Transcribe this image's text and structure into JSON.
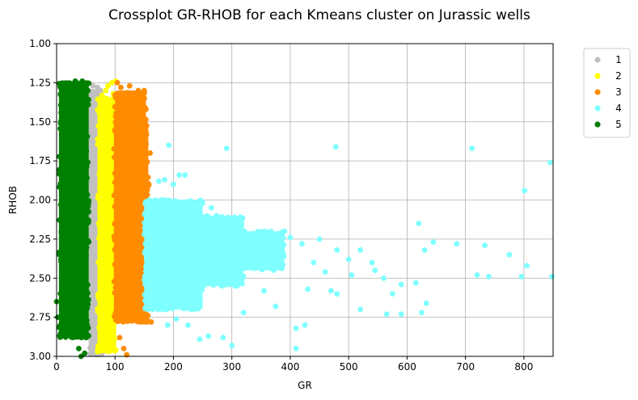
{
  "chart_data": {
    "type": "scatter",
    "title": "Crossplot GR-RHOB for each Kmeans cluster on Jurassic wells",
    "xlabel": "GR",
    "ylabel": "RHOB",
    "xlim": [
      0,
      850
    ],
    "ylim": [
      1.0,
      3.0
    ],
    "y_inverted": true,
    "x_ticks": [
      0,
      100,
      200,
      300,
      400,
      500,
      600,
      700,
      800
    ],
    "x_tick_labels": [
      "0",
      "100",
      "200",
      "300",
      "400",
      "500",
      "600",
      "700",
      "800"
    ],
    "y_ticks": [
      1.0,
      1.25,
      1.5,
      1.75,
      2.0,
      2.25,
      2.5,
      2.75,
      3.0
    ],
    "y_tick_labels": [
      "1.00",
      "1.25",
      "1.50",
      "1.75",
      "2.00",
      "2.25",
      "2.50",
      "2.75",
      "3.00"
    ],
    "grid": true,
    "legend_position": "outside-top-right",
    "series": [
      {
        "name": "1",
        "color": "#c0c0c0",
        "dense_regions": [
          {
            "x": [
              55,
              78
            ],
            "y": [
              1.3,
              2.99
            ]
          }
        ],
        "points": [
          [
            62,
            1.27
          ],
          [
            70,
            1.28
          ],
          [
            74,
            1.3
          ],
          [
            66,
            1.34
          ],
          [
            58,
            2.85
          ],
          [
            64,
            2.92
          ],
          [
            72,
            2.96
          ]
        ]
      },
      {
        "name": "2",
        "color": "#ffff00",
        "dense_regions": [
          {
            "x": [
              70,
              102
            ],
            "y": [
              1.35,
              2.97
            ]
          }
        ],
        "points": [
          [
            88,
            1.27
          ],
          [
            95,
            1.25
          ],
          [
            101,
            1.24
          ],
          [
            84,
            1.3
          ],
          [
            78,
            1.33
          ],
          [
            97,
            1.32
          ]
        ]
      },
      {
        "name": "3",
        "color": "#ff8c00",
        "dense_regions": [
          {
            "x": [
              98,
              157
            ],
            "y": [
              1.5,
              2.78
            ]
          },
          {
            "x": [
              100,
              153
            ],
            "y": [
              1.3,
              1.5
            ]
          }
        ],
        "points": [
          [
            104,
            1.25
          ],
          [
            110,
            1.28
          ],
          [
            125,
            1.27
          ],
          [
            140,
            1.3
          ],
          [
            150,
            1.3
          ],
          [
            148,
            1.4
          ],
          [
            153,
            1.42
          ],
          [
            160,
            1.7
          ],
          [
            158,
            1.9
          ],
          [
            162,
            2.78
          ],
          [
            108,
            2.88
          ],
          [
            115,
            2.95
          ],
          [
            120,
            2.99
          ]
        ]
      },
      {
        "name": "4",
        "color": "#7fffff",
        "dense_regions": [
          {
            "x": [
              150,
              250
            ],
            "y": [
              2.0,
              2.7
            ]
          },
          {
            "x": [
              250,
              320
            ],
            "y": [
              2.1,
              2.55
            ]
          },
          {
            "x": [
              320,
              390
            ],
            "y": [
              2.2,
              2.45
            ]
          }
        ],
        "points": [
          [
            192,
            1.65
          ],
          [
            291,
            1.67
          ],
          [
            478,
            1.66
          ],
          [
            711,
            1.67
          ],
          [
            845,
            1.76
          ],
          [
            801,
            1.94
          ],
          [
            175,
            1.88
          ],
          [
            185,
            1.87
          ],
          [
            200,
            1.9
          ],
          [
            210,
            1.84
          ],
          [
            220,
            1.84
          ],
          [
            205,
            2.05
          ],
          [
            240,
            2.05
          ],
          [
            265,
            2.05
          ],
          [
            390,
            2.2
          ],
          [
            400,
            2.24
          ],
          [
            420,
            2.28
          ],
          [
            450,
            2.25
          ],
          [
            480,
            2.32
          ],
          [
            500,
            2.38
          ],
          [
            520,
            2.32
          ],
          [
            540,
            2.4
          ],
          [
            560,
            2.5
          ],
          [
            620,
            2.15
          ],
          [
            630,
            2.32
          ],
          [
            645,
            2.27
          ],
          [
            685,
            2.28
          ],
          [
            733,
            2.29
          ],
          [
            775,
            2.35
          ],
          [
            720,
            2.48
          ],
          [
            740,
            2.49
          ],
          [
            796,
            2.49
          ],
          [
            805,
            2.42
          ],
          [
            848,
            2.49
          ],
          [
            615,
            2.53
          ],
          [
            590,
            2.54
          ],
          [
            575,
            2.6
          ],
          [
            565,
            2.73
          ],
          [
            590,
            2.73
          ],
          [
            625,
            2.72
          ],
          [
            633,
            2.66
          ],
          [
            520,
            2.7
          ],
          [
            480,
            2.6
          ],
          [
            430,
            2.57
          ],
          [
            410,
            2.82
          ],
          [
            410,
            2.95
          ],
          [
            425,
            2.8
          ],
          [
            375,
            2.68
          ],
          [
            300,
            2.93
          ],
          [
            285,
            2.88
          ],
          [
            260,
            2.87
          ],
          [
            245,
            2.89
          ],
          [
            225,
            2.8
          ],
          [
            205,
            2.76
          ],
          [
            190,
            2.8
          ],
          [
            320,
            2.72
          ],
          [
            355,
            2.58
          ],
          [
            440,
            2.4
          ],
          [
            460,
            2.46
          ],
          [
            470,
            2.58
          ],
          [
            505,
            2.48
          ],
          [
            545,
            2.45
          ]
        ]
      },
      {
        "name": "5",
        "color": "#008000",
        "dense_regions": [
          {
            "x": [
              4,
              55
            ],
            "y": [
              1.25,
              2.88
            ]
          }
        ],
        "points": [
          [
            0,
            2.65
          ],
          [
            2,
            2.75
          ],
          [
            32,
            1.24
          ],
          [
            44,
            1.24
          ],
          [
            38,
            2.95
          ],
          [
            42,
            3.0
          ],
          [
            48,
            2.98
          ]
        ]
      }
    ]
  }
}
